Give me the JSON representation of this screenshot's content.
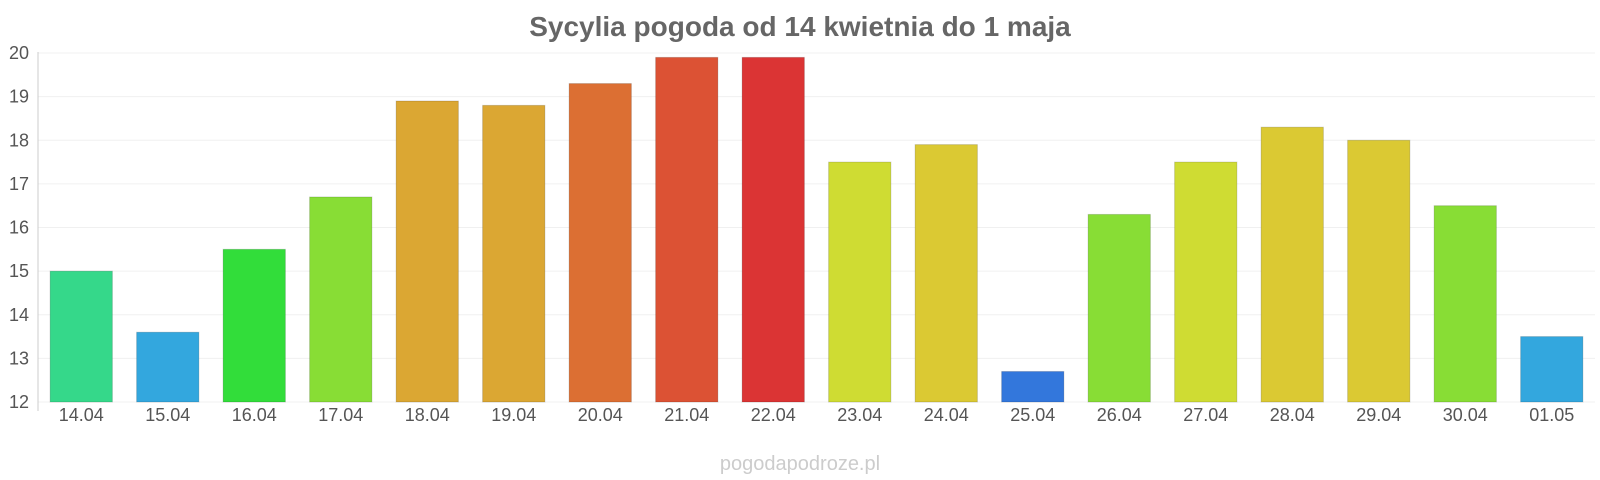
{
  "chart_data": {
    "type": "bar",
    "title": "Sycylia pogoda od 14 kwietnia do 1 maja",
    "categories": [
      "14.04",
      "15.04",
      "16.04",
      "17.04",
      "18.04",
      "19.04",
      "20.04",
      "21.04",
      "22.04",
      "23.04",
      "24.04",
      "25.04",
      "26.04",
      "27.04",
      "28.04",
      "29.04",
      "30.04",
      "01.05"
    ],
    "values": [
      15.0,
      13.6,
      15.5,
      16.7,
      18.9,
      18.8,
      19.3,
      19.9,
      19.9,
      17.5,
      17.9,
      12.7,
      16.3,
      17.5,
      18.3,
      18.0,
      16.5,
      13.5
    ],
    "colors": [
      "#35d88a",
      "#33a7de",
      "#32dd3a",
      "#88dd35",
      "#dba733",
      "#dba733",
      "#dc6f33",
      "#dc5234",
      "#db3434",
      "#cfdc33",
      "#dbc933",
      "#3377dc",
      "#88dd35",
      "#cfdc33",
      "#dbc933",
      "#dbc933",
      "#88dd35",
      "#33a7de"
    ],
    "yticks": [
      12,
      13,
      14,
      15,
      16,
      17,
      18,
      19,
      20
    ],
    "ylim": [
      12,
      20
    ],
    "xlabel": "",
    "ylabel": "",
    "grid": true,
    "watermark": "pogodapodroze.pl"
  }
}
